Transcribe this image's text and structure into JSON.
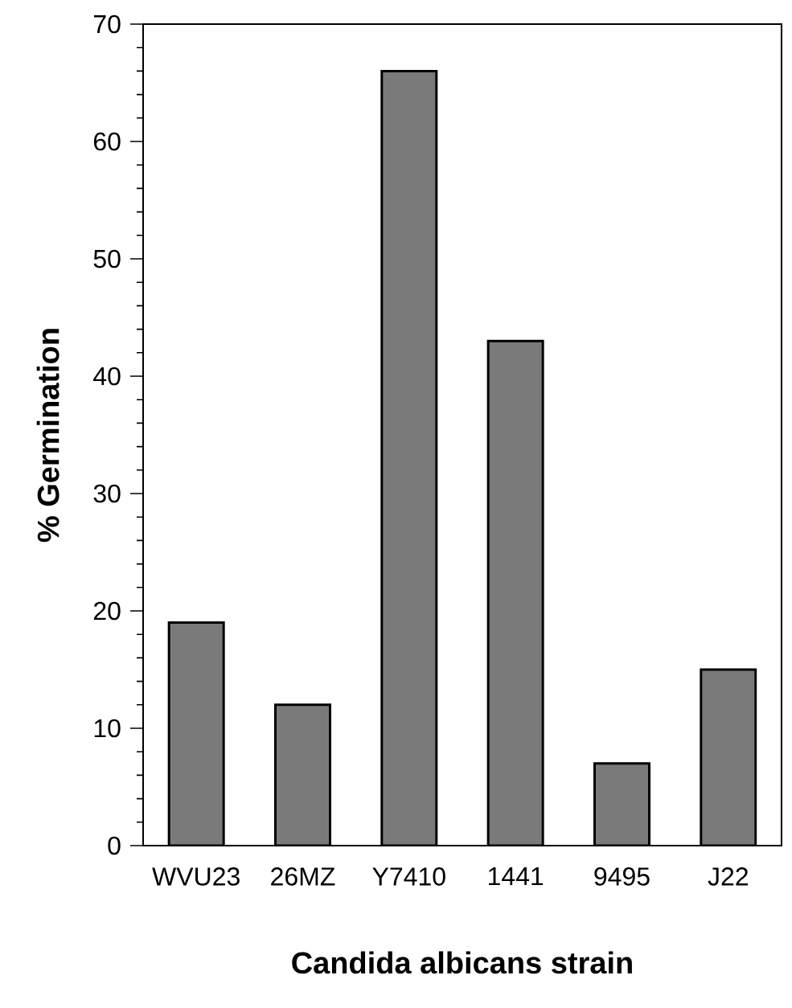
{
  "chart_data": {
    "type": "bar",
    "categories": [
      "WVU23",
      "26MZ",
      "Y7410",
      "1441",
      "9495",
      "J22"
    ],
    "values": [
      19,
      12,
      66,
      43,
      7,
      15
    ],
    "color": "#7a7a7a",
    "xlabel": "Candida albicans strain",
    "ylabel": "% Germination",
    "ylim": [
      0,
      70
    ],
    "yticks": [
      0,
      10,
      20,
      30,
      40,
      50,
      60,
      70
    ]
  }
}
